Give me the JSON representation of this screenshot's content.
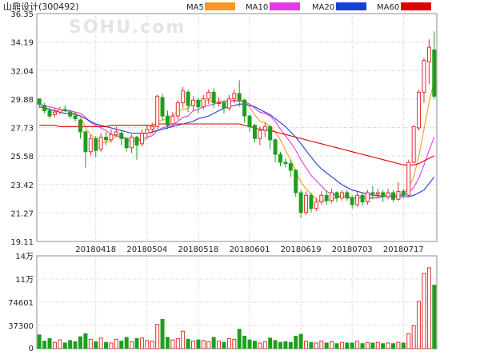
{
  "header": {
    "title": "山鼎设计(300492)",
    "legend": [
      {
        "label": "MA5",
        "color": "#f59a23"
      },
      {
        "label": "MA10",
        "color": "#e33be3"
      },
      {
        "label": "MA20",
        "color": "#1a3fd9"
      },
      {
        "label": "MA60",
        "color": "#e00000"
      }
    ]
  },
  "watermark": "SOHU.com",
  "colors": {
    "up": "#e03030",
    "down": "#1e9e1e",
    "grid": "#c9c9c9",
    "axis": "#8c8c8c",
    "text": "#222222"
  },
  "chart_data": [
    {
      "type": "candlestick",
      "title": "山鼎设计(300492)",
      "ylim": [
        19.11,
        36.35
      ],
      "y_ticks": [
        "36.35",
        "34.19",
        "32.04",
        "29.88",
        "27.73",
        "25.58",
        "23.42",
        "21.27",
        "19.11"
      ],
      "x_ticks": [
        {
          "index": 11,
          "label": "20180418"
        },
        {
          "index": 21,
          "label": "20180504"
        },
        {
          "index": 31,
          "label": "20180518"
        },
        {
          "index": 41,
          "label": "20180601"
        },
        {
          "index": 51,
          "label": "20180619"
        },
        {
          "index": 61,
          "label": "20180703"
        },
        {
          "index": 71,
          "label": "20180717"
        }
      ],
      "candles": [
        [
          29.9,
          29.5,
          29.9,
          29.2
        ],
        [
          29.4,
          29.0,
          29.6,
          28.8
        ],
        [
          29.0,
          28.6,
          29.3,
          28.4
        ],
        [
          28.7,
          28.9,
          29.2,
          28.5
        ],
        [
          28.9,
          29.1,
          29.3,
          28.7
        ],
        [
          29.1,
          29.0,
          29.4,
          28.9
        ],
        [
          28.9,
          28.6,
          29.1,
          28.4
        ],
        [
          28.6,
          28.4,
          28.9,
          28.2
        ],
        [
          28.3,
          27.4,
          28.4,
          26.9
        ],
        [
          27.4,
          25.9,
          27.5,
          24.7
        ],
        [
          25.9,
          26.9,
          27.2,
          25.6
        ],
        [
          26.9,
          26.0,
          27.1,
          25.5
        ],
        [
          26.1,
          27.0,
          27.3,
          25.9
        ],
        [
          27.0,
          26.8,
          27.4,
          26.4
        ],
        [
          26.8,
          27.2,
          27.6,
          26.6
        ],
        [
          27.2,
          27.4,
          27.8,
          27.0
        ],
        [
          27.3,
          26.9,
          27.5,
          26.4
        ],
        [
          26.9,
          26.2,
          27.0,
          25.9
        ],
        [
          26.2,
          27.0,
          27.2,
          25.8
        ],
        [
          27.0,
          26.4,
          27.1,
          25.3
        ],
        [
          26.5,
          27.3,
          27.6,
          26.3
        ],
        [
          27.3,
          27.6,
          27.9,
          27.0
        ],
        [
          27.6,
          27.8,
          28.1,
          27.3
        ],
        [
          27.8,
          30.1,
          30.2,
          27.6
        ],
        [
          30.0,
          28.6,
          30.3,
          28.3
        ],
        [
          28.6,
          27.9,
          29.0,
          27.6
        ],
        [
          28.0,
          28.6,
          28.9,
          27.8
        ],
        [
          28.6,
          29.6,
          29.8,
          28.3
        ],
        [
          29.6,
          30.5,
          30.8,
          29.2
        ],
        [
          30.4,
          29.4,
          30.6,
          28.9
        ],
        [
          29.4,
          29.8,
          30.1,
          29.0
        ],
        [
          29.8,
          29.3,
          30.0,
          28.8
        ],
        [
          29.3,
          29.9,
          30.2,
          29.1
        ],
        [
          29.9,
          30.4,
          30.6,
          29.5
        ],
        [
          30.4,
          29.6,
          30.7,
          29.2
        ],
        [
          29.6,
          29.6,
          30.0,
          29.3
        ],
        [
          29.6,
          29.2,
          29.8,
          28.8
        ],
        [
          29.2,
          29.9,
          30.2,
          29.0
        ],
        [
          29.9,
          30.3,
          30.6,
          29.6
        ],
        [
          30.3,
          29.8,
          31.3,
          29.3
        ],
        [
          29.8,
          28.6,
          29.9,
          28.1
        ],
        [
          28.6,
          27.8,
          28.7,
          27.4
        ],
        [
          27.9,
          26.9,
          28.0,
          26.6
        ],
        [
          26.9,
          27.5,
          27.8,
          26.4
        ],
        [
          27.5,
          27.8,
          28.1,
          27.0
        ],
        [
          27.8,
          26.8,
          27.9,
          26.1
        ],
        [
          26.8,
          25.7,
          26.9,
          25.1
        ],
        [
          25.7,
          25.1,
          25.9,
          24.8
        ],
        [
          25.1,
          25.0,
          25.4,
          24.7
        ],
        [
          25.0,
          24.5,
          25.3,
          24.0
        ],
        [
          24.5,
          22.8,
          24.6,
          22.5
        ],
        [
          22.8,
          21.3,
          23.0,
          20.9
        ],
        [
          21.3,
          22.6,
          22.9,
          21.1
        ],
        [
          22.6,
          21.6,
          22.8,
          21.3
        ],
        [
          21.6,
          22.1,
          22.4,
          21.4
        ],
        [
          22.1,
          22.6,
          22.9,
          21.9
        ],
        [
          22.6,
          22.2,
          23.0,
          21.9
        ],
        [
          22.2,
          22.8,
          23.1,
          22.0
        ],
        [
          22.8,
          22.4,
          22.9,
          22.1
        ],
        [
          22.4,
          22.8,
          23.0,
          22.2
        ],
        [
          22.8,
          22.4,
          23.0,
          22.2
        ],
        [
          22.4,
          21.9,
          22.6,
          21.6
        ],
        [
          21.9,
          22.6,
          22.9,
          21.7
        ],
        [
          22.6,
          22.1,
          22.8,
          21.8
        ],
        [
          22.1,
          22.8,
          23.0,
          21.9
        ],
        [
          22.8,
          22.7,
          23.3,
          22.3
        ],
        [
          22.7,
          22.8,
          23.1,
          22.4
        ],
        [
          22.8,
          22.5,
          23.0,
          22.1
        ],
        [
          22.5,
          22.8,
          23.1,
          22.3
        ],
        [
          22.8,
          22.3,
          23.0,
          22.1
        ],
        [
          22.3,
          22.9,
          23.6,
          22.2
        ],
        [
          22.9,
          22.6,
          23.1,
          22.4
        ],
        [
          22.6,
          25.1,
          25.3,
          22.5
        ],
        [
          25.1,
          27.8,
          27.9,
          25.0
        ],
        [
          27.7,
          30.4,
          30.6,
          27.5
        ],
        [
          30.4,
          32.8,
          33.0,
          29.6
        ],
        [
          32.7,
          33.8,
          34.4,
          31.0
        ],
        [
          33.6,
          30.1,
          35.0,
          29.9
        ]
      ],
      "ma": {
        "MA5": {
          "color": "#f59a23",
          "values": [
            29.4,
            29.3,
            29.1,
            29.0,
            29.0,
            29.0,
            28.9,
            28.8,
            28.6,
            27.7,
            27.2,
            26.8,
            26.6,
            26.6,
            26.8,
            27.1,
            27.1,
            26.9,
            26.9,
            26.8,
            26.7,
            26.9,
            27.3,
            28.2,
            28.3,
            28.4,
            28.6,
            29.0,
            29.1,
            29.2,
            29.6,
            29.8,
            29.7,
            29.8,
            29.7,
            29.7,
            29.7,
            29.8,
            29.7,
            29.8,
            29.7,
            29.3,
            28.7,
            28.2,
            28.1,
            27.8,
            27.4,
            26.8,
            26.0,
            25.3,
            24.4,
            23.6,
            23.1,
            22.7,
            22.3,
            22.1,
            22.2,
            22.3,
            22.4,
            22.6,
            22.6,
            22.4,
            22.4,
            22.4,
            22.3,
            22.4,
            22.5,
            22.6,
            22.6,
            22.6,
            22.7,
            22.7,
            23.2,
            24.0,
            25.6,
            27.6,
            29.6,
            31.3
          ]
        },
        "MA10": {
          "color": "#e33be3",
          "values": [
            29.5,
            29.4,
            29.3,
            29.2,
            29.1,
            29.0,
            29.0,
            28.9,
            28.8,
            28.5,
            28.1,
            27.9,
            27.7,
            27.5,
            27.2,
            27.1,
            27.0,
            26.8,
            26.7,
            26.7,
            26.9,
            27.0,
            27.1,
            27.5,
            27.7,
            27.8,
            27.9,
            28.2,
            28.5,
            28.6,
            29.0,
            29.1,
            29.3,
            29.4,
            29.5,
            29.6,
            29.7,
            29.7,
            29.8,
            29.7,
            29.7,
            29.5,
            29.2,
            28.9,
            28.8,
            28.6,
            28.2,
            27.6,
            27.1,
            26.6,
            26.0,
            25.3,
            24.7,
            24.1,
            23.7,
            23.3,
            22.9,
            22.7,
            22.6,
            22.5,
            22.4,
            22.4,
            22.4,
            22.5,
            22.5,
            22.4,
            22.4,
            22.5,
            22.5,
            22.5,
            22.6,
            22.6,
            22.8,
            23.2,
            23.9,
            24.9,
            26.0,
            27.0
          ]
        },
        "MA20": {
          "color": "#1a3fd9",
          "values": [
            29.3,
            29.2,
            29.1,
            29.0,
            28.9,
            28.8,
            28.8,
            28.7,
            28.6,
            28.4,
            28.2,
            28.0,
            27.9,
            27.8,
            27.7,
            27.6,
            27.5,
            27.4,
            27.3,
            27.3,
            27.3,
            27.3,
            27.4,
            27.5,
            27.6,
            27.7,
            27.8,
            27.9,
            28.0,
            28.1,
            28.2,
            28.4,
            28.5,
            28.6,
            28.8,
            29.0,
            29.2,
            29.3,
            29.4,
            29.5,
            29.5,
            29.4,
            29.3,
            29.1,
            28.9,
            28.7,
            28.4,
            28.1,
            27.8,
            27.4,
            27.0,
            26.5,
            26.0,
            25.5,
            25.0,
            24.6,
            24.3,
            24.0,
            23.7,
            23.4,
            23.2,
            23.0,
            22.9,
            22.8,
            22.7,
            22.6,
            22.6,
            22.5,
            22.5,
            22.5,
            22.5,
            22.5,
            22.5,
            22.6,
            22.8,
            23.0,
            23.5,
            24.0
          ]
        },
        "MA60": {
          "color": "#e00000",
          "values": [
            27.9,
            27.9,
            27.9,
            27.9,
            27.8,
            27.8,
            27.8,
            27.8,
            27.8,
            27.8,
            27.8,
            27.8,
            27.8,
            27.8,
            27.9,
            27.9,
            27.9,
            27.9,
            27.9,
            27.9,
            27.9,
            27.9,
            27.9,
            28.0,
            28.0,
            28.0,
            28.0,
            28.0,
            28.0,
            28.0,
            28.0,
            28.0,
            28.0,
            28.0,
            28.0,
            28.0,
            28.0,
            28.0,
            28.0,
            28.0,
            27.9,
            27.8,
            27.7,
            27.6,
            27.6,
            27.5,
            27.4,
            27.3,
            27.2,
            27.1,
            27.0,
            26.9,
            26.8,
            26.7,
            26.6,
            26.5,
            26.4,
            26.3,
            26.2,
            26.1,
            26.0,
            25.9,
            25.8,
            25.7,
            25.6,
            25.5,
            25.4,
            25.3,
            25.2,
            25.1,
            25.0,
            24.9,
            24.9,
            24.9,
            25.0,
            25.2,
            25.4,
            25.6
          ]
        }
      }
    },
    {
      "type": "bar",
      "title": "",
      "ylim": [
        0,
        149202
      ],
      "y_ticks": [
        "14万",
        "11万",
        "74601",
        "37300",
        "0"
      ],
      "values": [
        22000,
        12000,
        16000,
        10000,
        14000,
        9000,
        13000,
        11000,
        19000,
        24000,
        15000,
        11000,
        17000,
        10000,
        9000,
        15000,
        12000,
        18000,
        11000,
        16000,
        17000,
        13000,
        12000,
        39000,
        47000,
        18000,
        14000,
        16000,
        28000,
        15000,
        12000,
        14000,
        13000,
        11000,
        18000,
        12000,
        10000,
        16000,
        15000,
        31000,
        20000,
        14000,
        12000,
        9000,
        11000,
        17000,
        13000,
        10000,
        11000,
        10000,
        20000,
        23000,
        12000,
        10000,
        9000,
        12000,
        9000,
        11000,
        8000,
        10000,
        9000,
        9000,
        12000,
        8000,
        10000,
        9000,
        10000,
        8000,
        9000,
        8000,
        10000,
        9000,
        24000,
        37000,
        76000,
        121000,
        130000,
        102000
      ]
    }
  ]
}
